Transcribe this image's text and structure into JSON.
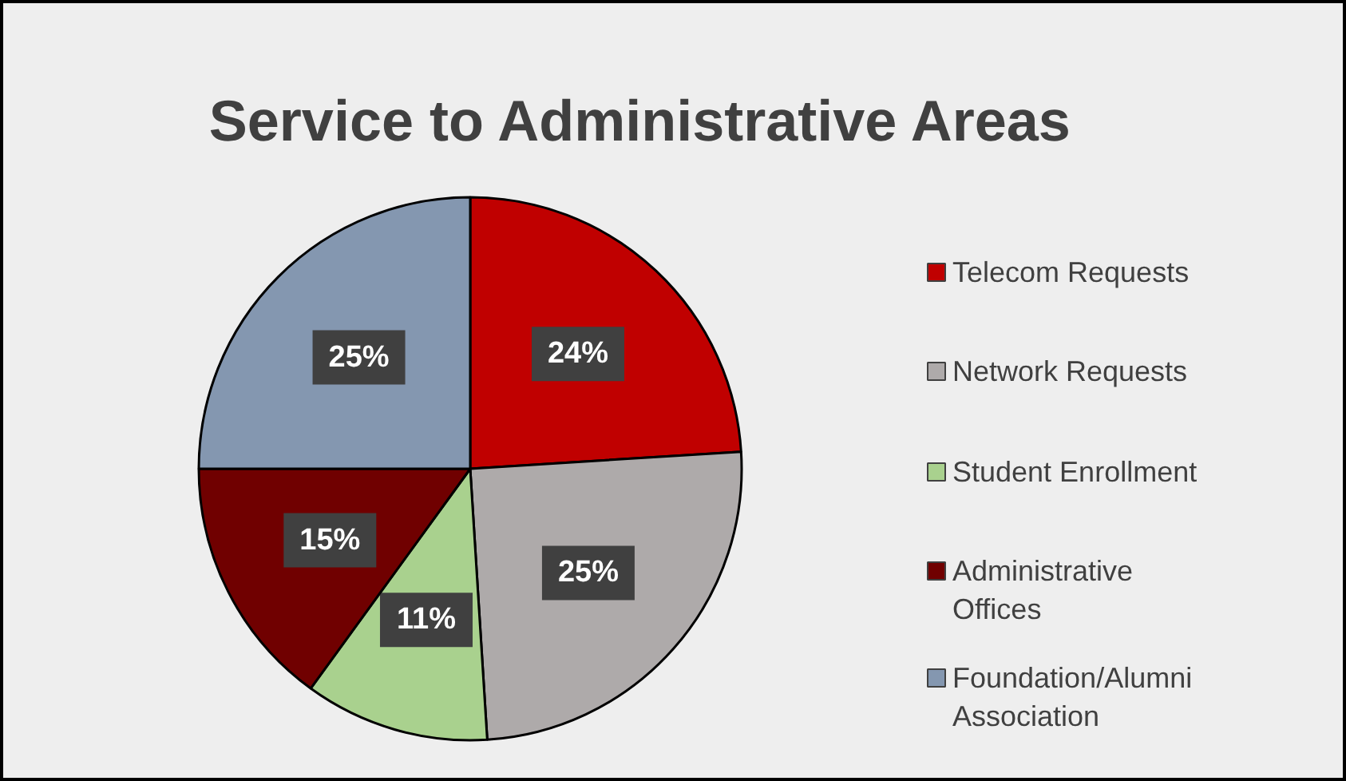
{
  "chart_data": {
    "type": "pie",
    "title": "Service to Administrative Areas",
    "categories": [
      "Telecom Requests",
      "Network Requests",
      "Student Enrollment",
      "Administrative Offices",
      "Foundation/Alumni Association"
    ],
    "values": [
      24,
      25,
      11,
      15,
      25
    ],
    "colors": [
      "#c00000",
      "#aeaaaa",
      "#a9d18e",
      "#700000",
      "#8497b0"
    ],
    "value_labels": [
      "24%",
      "25%",
      "11%",
      "15%",
      "25%"
    ],
    "legend": "right"
  }
}
